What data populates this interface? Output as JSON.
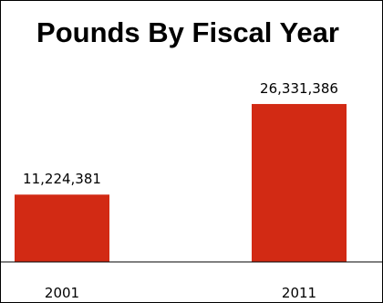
{
  "chart_data": {
    "type": "bar",
    "title": "Pounds By Fiscal Year",
    "categories": [
      "2001",
      "2011"
    ],
    "values": [
      11224381,
      26331386
    ],
    "value_labels": [
      "11,224,381",
      "26,331,386"
    ],
    "xlabel": "",
    "ylabel": "",
    "ylim": [
      0,
      35000000
    ],
    "grid": false,
    "legend": "none",
    "bar_color": "#D22A14"
  }
}
